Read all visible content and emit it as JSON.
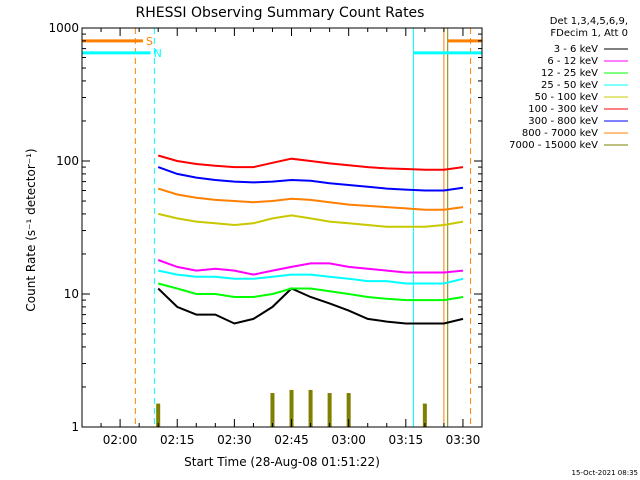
{
  "chart_data": {
    "type": "line",
    "title": "RHESSI Observing Summary Count Rates",
    "xlabel": "Start Time (28-Aug-08 01:51:22)",
    "ylabel": "Count Rate (s⁻¹ detector⁻¹)",
    "y_scale": "log",
    "ylim": [
      1,
      1000
    ],
    "y_ticks": [
      {
        "value": 1,
        "label": "1"
      },
      {
        "value": 10,
        "label": "10"
      },
      {
        "value": 100,
        "label": "100"
      },
      {
        "value": 1000,
        "label": "1000"
      }
    ],
    "x_range_minutes": [
      -10,
      95
    ],
    "x_ticks": [
      {
        "minute": 0,
        "label": "02:00"
      },
      {
        "minute": 15,
        "label": "02:15"
      },
      {
        "minute": 30,
        "label": "02:30"
      },
      {
        "minute": 45,
        "label": "02:45"
      },
      {
        "minute": 60,
        "label": "03:00"
      },
      {
        "minute": 75,
        "label": "03:15"
      },
      {
        "minute": 90,
        "label": "03:30"
      }
    ],
    "legend_header": [
      "Det 1,3,4,5,6,9,",
      "FDecim 1, Att 0"
    ],
    "series": [
      {
        "name": "3 - 6 keV",
        "color": "#000000",
        "start": 10,
        "values": [
          11,
          8,
          7,
          7,
          6,
          6.5,
          8,
          11,
          9.5,
          8.5,
          7.5,
          6.5,
          6.2,
          6,
          6,
          6,
          6.5
        ]
      },
      {
        "name": "6 - 12 keV",
        "color": "#ff00ff",
        "start": 10,
        "values": [
          18,
          16,
          15,
          15.5,
          15,
          14,
          15,
          16,
          17,
          17,
          16,
          15.5,
          15,
          14.5,
          14.5,
          14.5,
          15
        ]
      },
      {
        "name": "12 - 25 keV",
        "color": "#00ff00",
        "start": 10,
        "values": [
          12,
          11,
          10,
          10,
          9.5,
          9.5,
          10,
          11,
          11,
          10.5,
          10,
          9.5,
          9.2,
          9,
          9,
          9,
          9.5
        ]
      },
      {
        "name": "25 - 50 keV",
        "color": "#00ffff",
        "start": 10,
        "values": [
          15,
          14,
          13.5,
          13.5,
          13,
          13,
          13.5,
          14,
          14,
          13.5,
          13,
          12.5,
          12.5,
          12,
          12,
          12,
          13
        ]
      },
      {
        "name": "50 - 100 keV",
        "color": "#c8c800",
        "start": 10,
        "values": [
          40,
          37,
          35,
          34,
          33,
          34,
          37,
          39,
          37,
          35,
          34,
          33,
          32,
          32,
          32,
          33,
          35
        ]
      },
      {
        "name": "100 - 300 keV",
        "color": "#ff0000",
        "start": 10,
        "values": [
          110,
          100,
          95,
          92,
          90,
          90,
          97,
          104,
          100,
          96,
          93,
          90,
          88,
          87,
          86,
          86,
          90
        ]
      },
      {
        "name": "300 - 800 keV",
        "color": "#0000ff",
        "start": 10,
        "values": [
          90,
          80,
          75,
          72,
          70,
          69,
          70,
          72,
          71,
          68,
          66,
          64,
          62,
          61,
          60,
          60,
          63
        ]
      },
      {
        "name": "800 - 7000 keV",
        "color": "#ff7f00",
        "start": 10,
        "values": [
          62,
          56,
          53,
          51,
          50,
          49,
          50,
          52,
          51,
          49,
          47,
          46,
          45,
          44,
          43,
          43,
          45
        ]
      },
      {
        "name": "7000 - 15000 keV",
        "color": "#7f7f00",
        "start": 10,
        "values": [
          1.5,
          1,
          1,
          1,
          1,
          1,
          1.8,
          1.9,
          1.9,
          1.8,
          1.8,
          1,
          1,
          1,
          1.5,
          1,
          1
        ]
      }
    ],
    "flags": [
      {
        "label": "S",
        "color": "#ff7f00",
        "value": 800,
        "segments": [
          [
            -10,
            6
          ],
          [
            86,
            95
          ]
        ]
      },
      {
        "label": "N",
        "color": "#00ffff",
        "value": 650,
        "segments": [
          [
            -10,
            8
          ],
          [
            77,
            95
          ]
        ]
      }
    ],
    "vertical_lines": [
      {
        "minute": 4,
        "color": "#ff7f00",
        "style": "dashed"
      },
      {
        "minute": 9,
        "color": "#00ffff",
        "style": "dashed"
      },
      {
        "minute": 77,
        "color": "#00ffff",
        "style": "solid"
      },
      {
        "minute": 85,
        "color": "#ff7f00",
        "style": "solid"
      },
      {
        "minute": 86,
        "color": "#7f7f00",
        "style": "solid"
      },
      {
        "minute": 92,
        "color": "#ff7f00",
        "style": "dashed"
      }
    ],
    "grid": false,
    "legend_position": "right"
  },
  "footer": {
    "timestamp": "15-Oct-2021 08:35"
  }
}
